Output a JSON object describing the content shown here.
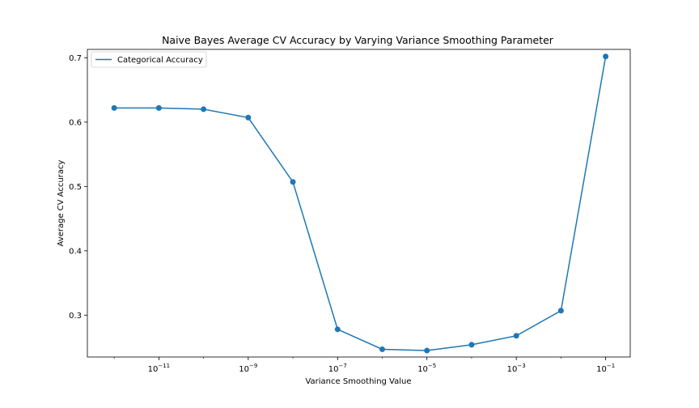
{
  "chart_data": {
    "type": "line",
    "title": "Naive Bayes Average CV Accuracy by Varying Variance Smoothing Parameter",
    "xlabel": "Variance Smoothing Value",
    "ylabel": "Average CV Accuracy",
    "xscale": "log",
    "xlim_log10": [
      -12.6,
      -0.45
    ],
    "ylim": [
      0.235,
      0.713
    ],
    "x_ticks": [
      {
        "base": "10",
        "exp": "−11",
        "log10": -11
      },
      {
        "base": "10",
        "exp": "−9",
        "log10": -9
      },
      {
        "base": "10",
        "exp": "−7",
        "log10": -7
      },
      {
        "base": "10",
        "exp": "−5",
        "log10": -5
      },
      {
        "base": "10",
        "exp": "−3",
        "log10": -3
      },
      {
        "base": "10",
        "exp": "−1",
        "log10": -1
      }
    ],
    "y_ticks": [
      {
        "label": "0.3",
        "value": 0.3
      },
      {
        "label": "0.4",
        "value": 0.4
      },
      {
        "label": "0.5",
        "value": 0.5
      },
      {
        "label": "0.6",
        "value": 0.6
      },
      {
        "label": "0.7",
        "value": 0.7
      }
    ],
    "grid": false,
    "legend_position": "top-left",
    "series": [
      {
        "name": "Categorical Accuracy",
        "color": "#1f77b4",
        "marker": "circle",
        "x": [
          1e-12,
          1e-11,
          1e-10,
          1e-09,
          1e-08,
          1e-07,
          1e-06,
          1e-05,
          0.0001,
          0.001,
          0.01,
          0.1
        ],
        "y": [
          0.622,
          0.622,
          0.62,
          0.607,
          0.507,
          0.278,
          0.247,
          0.245,
          0.254,
          0.268,
          0.307,
          0.702
        ]
      }
    ]
  }
}
